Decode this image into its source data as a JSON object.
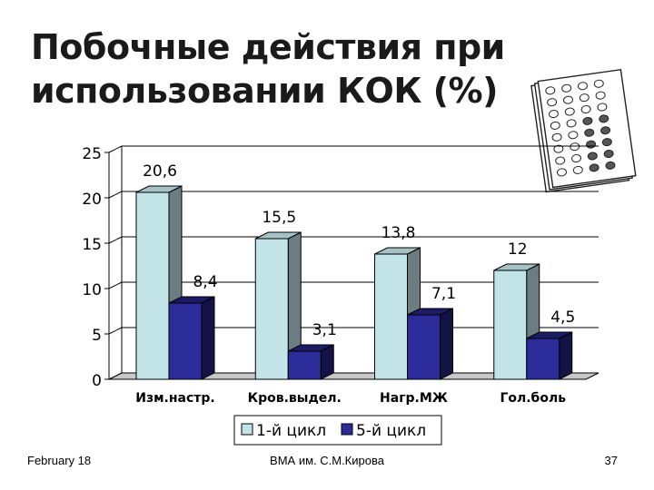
{
  "slide": {
    "title": "Побочные действия при использовании КОК (%)",
    "footer_date": "February 18",
    "footer_center": "ВМА им. С.М.Кирова",
    "page_number": "37"
  },
  "decorative_image": {
    "icon": "contraceptive-pill-pack-icon"
  },
  "chart_data": {
    "type": "bar",
    "categories": [
      "Изм.настр.",
      "Кров.выдел.",
      "Нагр.МЖ",
      "Гол.боль"
    ],
    "series": [
      {
        "name": "1-й цикл",
        "values": [
          20.6,
          15.5,
          13.8,
          12
        ],
        "labels": [
          "20,6",
          "15,5",
          "13,8",
          "12"
        ],
        "color": "#c2e4e8"
      },
      {
        "name": "5-й цикл",
        "values": [
          8.4,
          3.1,
          7.1,
          4.5
        ],
        "labels": [
          "8,4",
          "3,1",
          "7,1",
          "4,5"
        ],
        "color": "#2b2b9a"
      }
    ],
    "ylim": [
      0,
      25
    ],
    "yticks": [
      "0",
      "5",
      "10",
      "15",
      "20",
      "25"
    ],
    "grid": true,
    "legend_position": "bottom",
    "style": "3d-column"
  }
}
